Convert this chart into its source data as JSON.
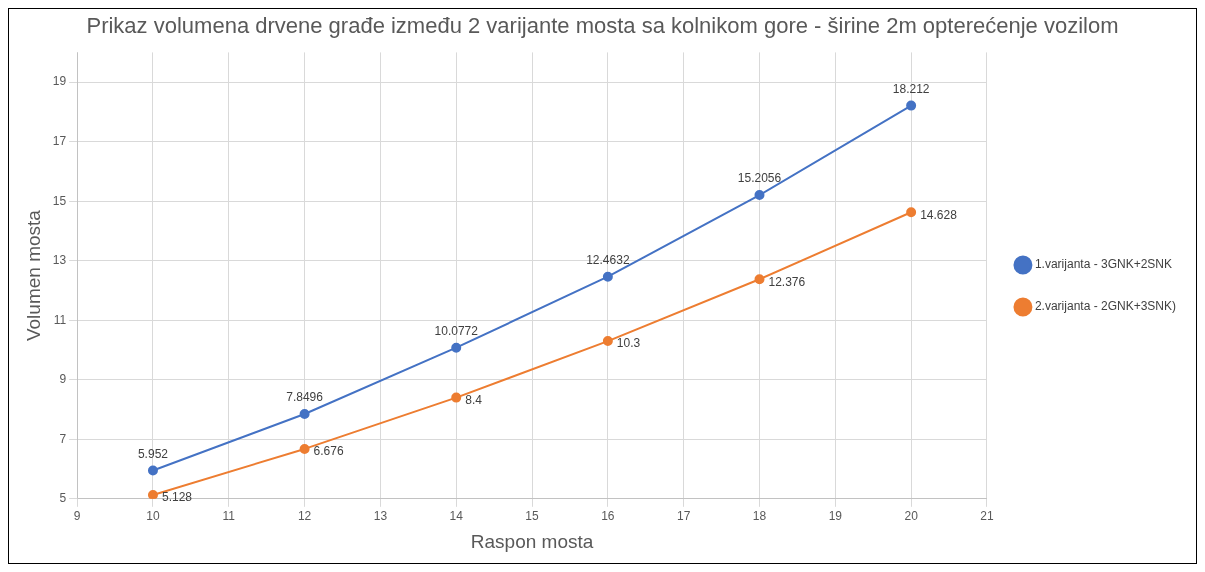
{
  "chart_data": {
    "type": "line",
    "title": "Prikaz volumena drvene građe između 2 varijante mosta sa kolnikom gore - širine 2m opterećenje vozilom",
    "xlabel": "Raspon mosta",
    "ylabel": "Volumen mosta",
    "x": [
      10,
      12,
      14,
      16,
      18,
      20
    ],
    "series": [
      {
        "name": "1.varijanta - 3GNK+2SNK",
        "color": "#4472c4",
        "values": [
          5.952,
          7.8496,
          10.0772,
          12.4632,
          15.2056,
          18.212
        ]
      },
      {
        "name": "2.varijanta - 2GNK+3SNK)",
        "color": "#ed7d31",
        "values": [
          5.128,
          6.676,
          8.4,
          10.3,
          12.376,
          14.628
        ]
      }
    ],
    "xlim": [
      9,
      21
    ],
    "xticks": [
      9,
      10,
      11,
      12,
      13,
      14,
      15,
      16,
      17,
      18,
      19,
      20,
      21
    ],
    "ylim": [
      5,
      20
    ],
    "yticks": [
      5,
      7,
      9,
      11,
      13,
      15,
      17,
      19
    ],
    "grid": true,
    "legend": "right",
    "marker": "circle",
    "line_style": "solid",
    "data_labels": true
  }
}
